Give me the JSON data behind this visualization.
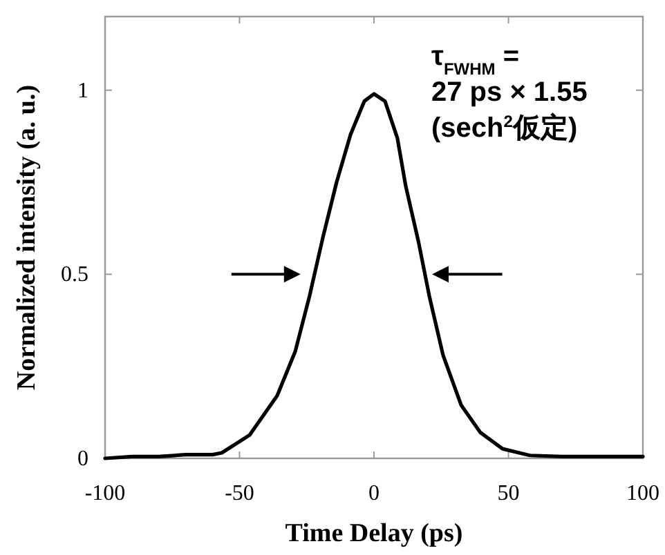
{
  "chart_data": {
    "type": "line",
    "xlabel": "Time Delay (ps)",
    "ylabel": "Normalized intensity (a. u.)",
    "xlim": [
      -100,
      100
    ],
    "xticks": [
      -100,
      -50,
      0,
      50,
      100
    ],
    "ylim": [
      0,
      1.2
    ],
    "yticks": [
      0,
      0.5,
      1
    ],
    "grid": false,
    "marker": "none",
    "line_style": "solid",
    "annotations": [
      "τ$_{FWHM}$ =\n27 ps × 1.55\n(sech$^{2}$仮定)"
    ],
    "series": [
      {
        "color": "#000000",
        "x": [
          -100,
          -90,
          -80,
          -70,
          -60,
          -56.6,
          -46.3,
          -36,
          -29.3,
          -24,
          -19,
          -13.9,
          -8.7,
          -3.6,
          0,
          4.1,
          8.7,
          11.8,
          16.5,
          20.6,
          25.7,
          32.4,
          39.6,
          47.8,
          58,
          70,
          80,
          90,
          100
        ],
        "values": [
          0,
          0.005,
          0.005,
          0.01,
          0.01,
          0.015,
          0.063,
          0.17,
          0.29,
          0.44,
          0.6,
          0.75,
          0.88,
          0.97,
          0.99,
          0.97,
          0.87,
          0.74,
          0.59,
          0.44,
          0.28,
          0.145,
          0.07,
          0.026,
          0.008,
          0.005,
          0.005,
          0.005,
          0.005
        ]
      }
    ]
  }
}
